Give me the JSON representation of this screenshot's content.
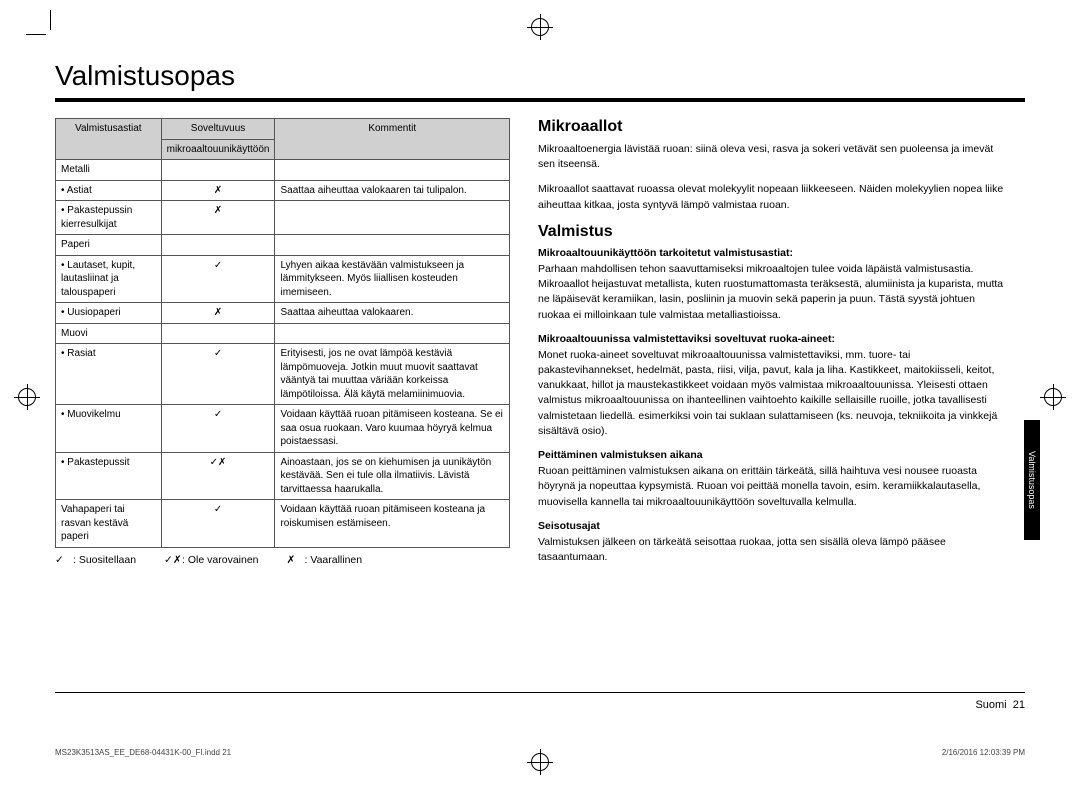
{
  "title": "Valmistusopas",
  "table": {
    "headers": {
      "col1": "Valmistusastiat",
      "col2_a": "Soveltuvuus",
      "col2_b": "mikroaaltouunikäyttöön",
      "col3": "Kommentit"
    },
    "rows": [
      {
        "name": "Metalli",
        "indent": 0,
        "suit": "",
        "comment": ""
      },
      {
        "name": "Astiat",
        "indent": 1,
        "suit": "✗",
        "comment": "Saattaa aiheuttaa valokaaren tai tulipalon."
      },
      {
        "name": "Pakastepussin kierresulkijat",
        "indent": 1,
        "suit": "✗",
        "comment": ""
      },
      {
        "name": "Paperi",
        "indent": 0,
        "suit": "",
        "comment": ""
      },
      {
        "name": "Lautaset, kupit, lautasliinat ja talouspaperi",
        "indent": 1,
        "suit": "✓",
        "comment": "Lyhyen aikaa kestävään valmistukseen ja lämmitykseen. Myös liiallisen kosteuden imemiseen."
      },
      {
        "name": "Uusiopaperi",
        "indent": 1,
        "suit": "✗",
        "comment": "Saattaa aiheuttaa valokaaren."
      },
      {
        "name": "Muovi",
        "indent": 0,
        "suit": "",
        "comment": ""
      },
      {
        "name": "Rasiat",
        "indent": 1,
        "suit": "✓",
        "comment": "Erityisesti, jos ne ovat lämpöä kestäviä lämpömuoveja. Jotkin muut muovit saattavat vääntyä tai muuttaa väriään korkeissa lämpötiloissa. Älä käytä melamiinimuovia."
      },
      {
        "name": "Muovikelmu",
        "indent": 1,
        "suit": "✓",
        "comment": "Voidaan käyttää ruoan pitämiseen kosteana. Se ei saa osua ruokaan. Varo kuumaa höyryä kelmua poistaessasi."
      },
      {
        "name": "Pakastepussit",
        "indent": 1,
        "suit": "✓✗",
        "comment": "Ainoastaan, jos se on kiehumisen ja uunikäytön kestävää. Sen ei tule olla ilmatiivis. Lävistä tarvittaessa haarukalla."
      },
      {
        "name": "Vahapaperi tai rasvan kestävä paperi",
        "indent": 0,
        "suit": "✓",
        "comment": "Voidaan käyttää ruoan pitämiseen kosteana ja roiskumisen estämiseen."
      }
    ]
  },
  "legend": {
    "rec": {
      "sym": "✓",
      "label": ": Suositellaan"
    },
    "care": {
      "sym": "✓✗",
      "label": ": Ole varovainen"
    },
    "danger": {
      "sym": "✗",
      "label": ": Vaarallinen"
    }
  },
  "right": {
    "h1": "Mikroaallot",
    "p1": "Mikroaaltoenergia lävistää ruoan: siinä oleva vesi, rasva ja sokeri vetävät sen puoleensa ja imevät sen itseensä.",
    "p2": "Mikroaallot saattavat ruoassa olevat molekyylit nopeaan liikkeeseen. Näiden molekyylien nopea liike aiheuttaa kitkaa, josta syntyvä lämpö valmistaa ruoan.",
    "h2": "Valmistus",
    "sub1": "Mikroaaltouunikäyttöön tarkoitetut valmistusastiat:",
    "sub1_body": "Parhaan mahdollisen tehon saavuttamiseksi mikroaaltojen tulee voida läpäistä valmistusastia. Mikroaallot heijastuvat metallista, kuten ruostumattomasta teräksestä, alumiinista ja kuparista, mutta ne läpäisevät keramiikan, lasin, posliinin ja muovin sekä paperin ja puun. Tästä syystä johtuen ruokaa ei milloinkaan tule valmistaa metalliastioissa.",
    "sub2": "Mikroaaltouunissa valmistettaviksi soveltuvat ruoka-aineet:",
    "sub2_body": "Monet ruoka-aineet soveltuvat mikroaaltouunissa valmistettaviksi, mm. tuore- tai pakastevihannekset, hedelmät, pasta, riisi, vilja, pavut, kala ja liha. Kastikkeet, maitokiisseli, keitot, vanukkaat, hillot ja maustekastikkeet voidaan myös valmistaa mikroaaltouunissa. Yleisesti ottaen valmistus mikroaaltouunissa on ihanteellinen vaihtoehto kaikille sellaisille ruoille, jotka tavallisesti valmistetaan liedellä. esimerkiksi voin tai suklaan sulattamiseen (ks. neuvoja, tekniikoita ja vinkkejä sisältävä osio).",
    "sub3": "Peittäminen valmistuksen aikana",
    "sub3_body": "Ruoan peittäminen valmistuksen aikana on erittäin tärkeätä, sillä haihtuva vesi nousee ruoasta höyrynä ja nopeuttaa kypsymistä. Ruoan voi peittää monella tavoin, esim. keramiikkalautasella, muovisella kannella tai mikroaaltouunikäyttöön soveltuvalla kelmulla.",
    "sub4": "Seisotusajat",
    "sub4_body": "Valmistuksen jälkeen on tärkeätä seisottaa ruokaa, jotta sen sisällä oleva lämpö pääsee tasaantumaan."
  },
  "side_tab": "Valmistusopas",
  "footer": {
    "lang": "Suomi",
    "page": "21"
  },
  "print": {
    "left": "MS23K3513AS_EE_DE68-04431K-00_FI.indd   21",
    "right": "2/16/2016   12:03:39 PM"
  }
}
